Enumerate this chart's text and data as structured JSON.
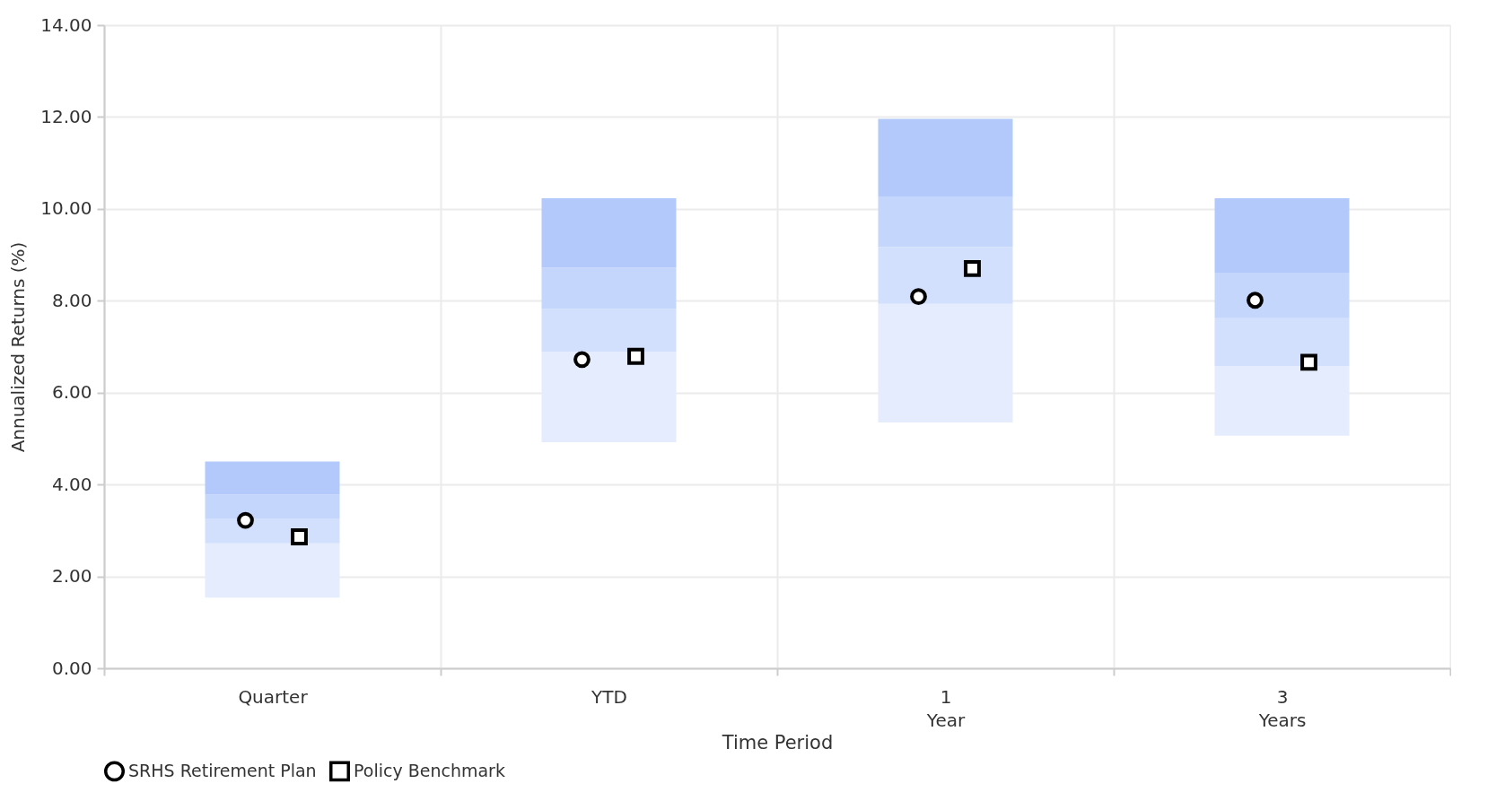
{
  "chart_data": {
    "type": "bar",
    "stacked": true,
    "xlabel": "Time Period",
    "ylabel": "Annualized Returns (%)",
    "categories": [
      "Quarter",
      "YTD",
      "1 Year",
      "3 Years"
    ],
    "series": [
      {
        "color": "#e4ecfd",
        "base": [
          1.54,
          4.92,
          5.35,
          5.06
        ],
        "values": [
          1.18,
          1.97,
          2.58,
          1.52
        ]
      },
      {
        "color": "#d3e0fd",
        "values": [
          0.54,
          0.93,
          1.24,
          1.04
        ]
      },
      {
        "color": "#c5d6fc",
        "values": [
          0.52,
          0.9,
          1.1,
          0.99
        ]
      },
      {
        "color": "#b3c9fc",
        "values": [
          0.72,
          1.51,
          1.69,
          1.62
        ]
      },
      {
        "type": "scatter",
        "name": "SRHS Retirement Plan",
        "color": "#000000",
        "marker": "circle",
        "x": [
          "Quarter",
          "YTD",
          "1 Year",
          "3 Years"
        ],
        "values": [
          3.22,
          6.72,
          8.09,
          8.01
        ]
      },
      {
        "type": "scatter",
        "name": "Policy Benchmark",
        "color": "#000000",
        "marker": "square",
        "x": [
          "Quarter",
          "YTD",
          "1 Year",
          "3 Years"
        ],
        "values": [
          2.86,
          6.79,
          8.7,
          6.66
        ]
      }
    ],
    "ylim": [
      0,
      14
    ],
    "yticks": [
      {
        "value": 0,
        "label": "0.00"
      },
      {
        "value": 2,
        "label": "2.00"
      },
      {
        "value": 4,
        "label": "4.00"
      },
      {
        "value": 6,
        "label": "6.00"
      },
      {
        "value": 8,
        "label": "8.00"
      },
      {
        "value": 10,
        "label": "10.00"
      },
      {
        "value": 12,
        "label": "12.00"
      },
      {
        "value": 14,
        "label": "14.00"
      }
    ],
    "grid": true,
    "legend": "bottom"
  }
}
